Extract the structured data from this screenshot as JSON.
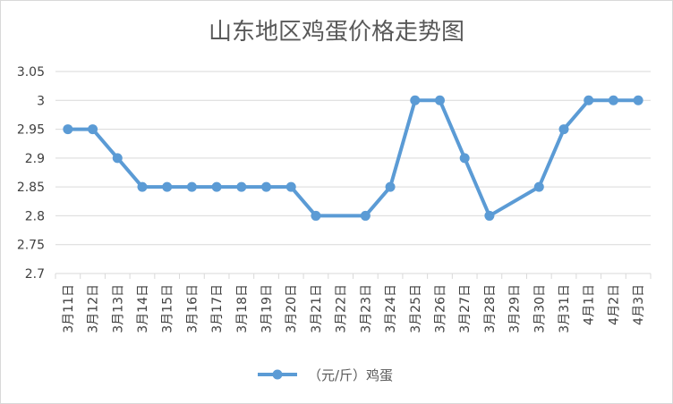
{
  "chart_data": {
    "type": "line",
    "title": "山东地区鸡蛋价格走势图",
    "x": [
      "3月11日",
      "3月12日",
      "3月13日",
      "3月14日",
      "3月15日",
      "3月16日",
      "3月17日",
      "3月18日",
      "3月19日",
      "3月20日",
      "3月21日",
      "3月22日",
      "3月23日",
      "3月24日",
      "3月25日",
      "3月26日",
      "3月27日",
      "3月28日",
      "3月29日",
      "3月30日",
      "3月31日",
      "4月1日",
      "4月2日",
      "4月3日"
    ],
    "series": [
      {
        "name": "（元/斤）鸡蛋",
        "color": "#5b9bd5",
        "values": [
          2.95,
          2.95,
          2.9,
          2.85,
          2.85,
          2.85,
          2.85,
          2.85,
          2.85,
          2.85,
          2.8,
          null,
          2.8,
          2.85,
          3.0,
          3.0,
          2.9,
          2.8,
          null,
          2.85,
          2.95,
          3.0,
          3.0,
          3.0
        ]
      }
    ],
    "yticks": [
      "2.7",
      "2.75",
      "2.8",
      "2.85",
      "2.9",
      "2.95",
      "3",
      "3.05"
    ],
    "ylim": [
      2.7,
      3.05
    ],
    "grid": true,
    "legend": "bottom"
  }
}
